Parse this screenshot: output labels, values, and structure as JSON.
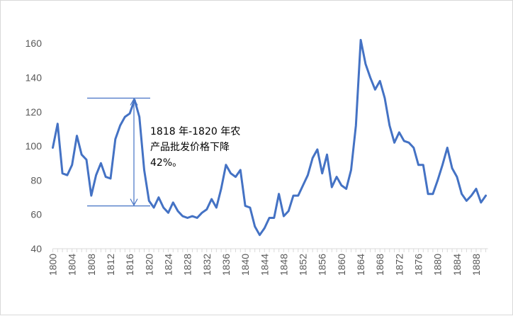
{
  "chart_data": {
    "type": "line",
    "title": "",
    "xlabel": "",
    "ylabel": "",
    "ylim": [
      40,
      170
    ],
    "yticks": [
      40,
      60,
      80,
      100,
      120,
      140,
      160
    ],
    "xticks": [
      1800,
      1804,
      1808,
      1812,
      1816,
      1820,
      1824,
      1828,
      1832,
      1836,
      1840,
      1844,
      1848,
      1852,
      1856,
      1860,
      1864,
      1868,
      1872,
      1876,
      1880,
      1884,
      1888
    ],
    "grid": false,
    "legend": "none",
    "line_color": "#4472C4",
    "annotation": {
      "line1": "1818 年-1820 年农",
      "line2": "产品批发价格下降",
      "line3": "42%。",
      "from_year": 1818,
      "to_year": 1820,
      "high_value": 128,
      "low_value": 65
    },
    "series": [
      {
        "x": [
          1800,
          1801,
          1802,
          1803,
          1804,
          1805,
          1806,
          1807,
          1808,
          1809,
          1810,
          1811,
          1812,
          1813,
          1814,
          1815,
          1816,
          1817,
          1818,
          1819,
          1820,
          1821,
          1822,
          1823,
          1824,
          1825,
          1826,
          1827,
          1828,
          1829,
          1830,
          1831,
          1832,
          1833,
          1834,
          1835,
          1836,
          1837,
          1838,
          1839,
          1840,
          1841,
          1842,
          1843,
          1844,
          1845,
          1846,
          1847,
          1848,
          1849,
          1850,
          1851,
          1852,
          1853,
          1854,
          1855,
          1856,
          1857,
          1858,
          1859,
          1860,
          1861,
          1862,
          1863,
          1864,
          1865,
          1866,
          1867,
          1868,
          1869,
          1870,
          1871,
          1872,
          1873,
          1874,
          1875,
          1876,
          1877,
          1878,
          1879,
          1880,
          1881,
          1882,
          1883,
          1884,
          1885,
          1886,
          1887,
          1888,
          1889,
          1890
        ],
        "values": [
          99,
          113,
          84,
          83,
          89,
          106,
          95,
          92,
          71,
          83,
          90,
          82,
          81,
          104,
          112,
          117,
          119,
          127,
          117,
          86,
          68,
          64,
          70,
          64,
          61,
          67,
          62,
          59,
          58,
          59,
          58,
          61,
          63,
          69,
          64,
          75,
          89,
          84,
          82,
          86,
          65,
          64,
          53,
          48,
          52,
          58,
          58,
          72,
          59,
          62,
          71,
          71,
          77,
          83,
          93,
          98,
          84,
          95,
          76,
          82,
          77,
          75,
          86,
          112,
          162,
          148,
          140,
          133,
          138,
          128,
          112,
          102,
          108,
          103,
          102,
          99,
          89,
          89,
          72,
          72,
          80,
          89,
          99,
          87,
          82,
          72,
          68,
          71,
          75,
          67,
          71
        ]
      }
    ]
  }
}
